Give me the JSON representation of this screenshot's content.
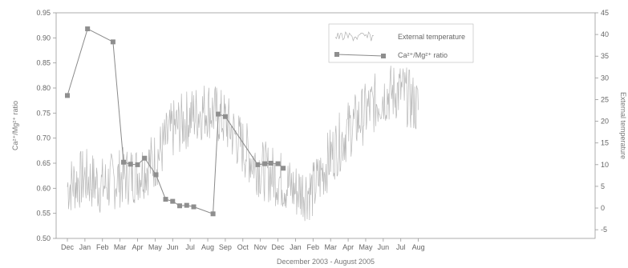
{
  "chart_data": {
    "type": "line",
    "xlabel": "December 2003 - August 2005",
    "x_ticks": [
      "Dec",
      "Jan",
      "Feb",
      "Mar",
      "Apr",
      "May",
      "Jun",
      "Jul",
      "Aug",
      "Sep",
      "Oct",
      "Nov",
      "Dec",
      "Jan",
      "Feb",
      "Mar",
      "Apr",
      "May",
      "Jun",
      "Jul",
      "Aug"
    ],
    "y_left": {
      "label": "Ca²⁺/Mg²⁺ ratio",
      "lim": [
        0.5,
        0.95
      ],
      "ticks": [
        "0.50",
        "0.55",
        "0.60",
        "0.65",
        "0.70",
        "0.75",
        "0.80",
        "0.85",
        "0.90",
        "0.95"
      ]
    },
    "y_right": {
      "label": "External temperature",
      "lim": [
        -7,
        45
      ],
      "ticks": [
        "-5",
        "0",
        "5",
        "10",
        "15",
        "20",
        "25",
        "30",
        "35",
        "40",
        "45"
      ]
    },
    "grid": false,
    "legend": {
      "position": "top-center",
      "entries": [
        "External temperature",
        "Ca²⁺/Mg²⁺ ratio"
      ]
    },
    "series": [
      {
        "name": "Ca²⁺/Mg²⁺ ratio",
        "axis": "left",
        "color": "#888888",
        "x": [
          0,
          1.15,
          2.6,
          3.2,
          3.6,
          4.0,
          4.4,
          5.05,
          5.6,
          6.0,
          6.4,
          6.8,
          7.2,
          8.3,
          8.6,
          9.0,
          10.85,
          11.25,
          11.6,
          12.0,
          12.3
        ],
        "y": [
          0.785,
          0.918,
          0.892,
          0.652,
          0.648,
          0.647,
          0.66,
          0.627,
          0.578,
          0.574,
          0.565,
          0.566,
          0.563,
          0.549,
          0.748,
          0.743,
          0.647,
          0.649,
          0.65,
          0.649,
          0.64
        ]
      },
      {
        "name": "External temperature",
        "axis": "right",
        "color": "#b0b0b0",
        "x": [
          0,
          1,
          2,
          3,
          4,
          5,
          6,
          7,
          8,
          9,
          10,
          11,
          12,
          13,
          14,
          15,
          16,
          17,
          18,
          19,
          20
        ],
        "y": [
          5,
          7,
          5,
          7,
          8,
          11,
          18,
          21,
          23,
          20,
          14,
          9,
          7,
          4,
          4,
          12,
          18,
          22,
          26,
          27,
          23
        ]
      }
    ]
  },
  "colors": {
    "axis": "#999999",
    "ratio": "#888888",
    "temperature": "#b0b0b0",
    "text": "#666666"
  }
}
